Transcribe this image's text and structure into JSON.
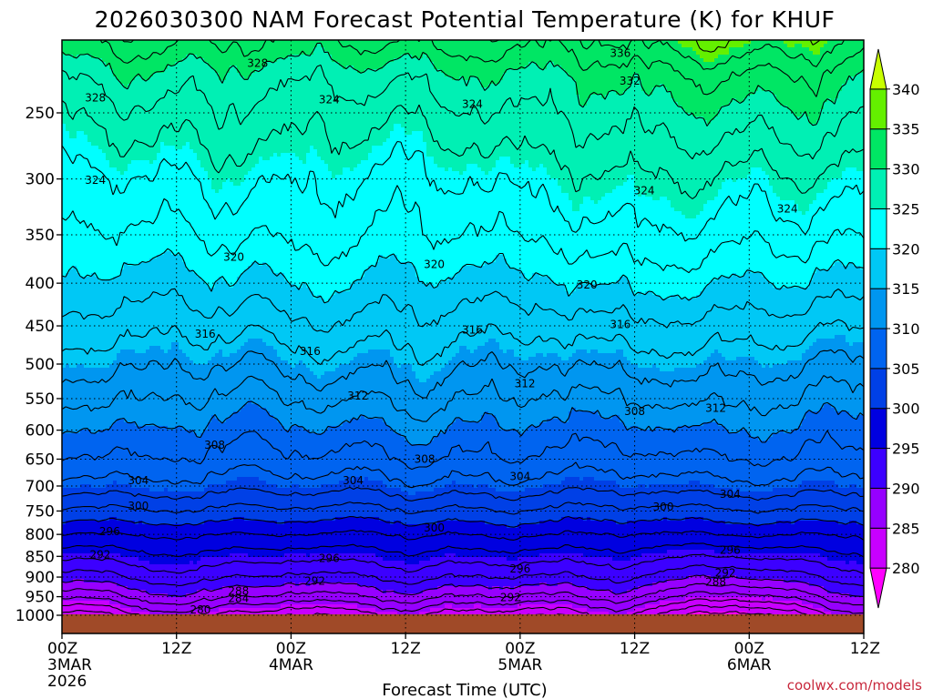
{
  "chart_data": {
    "type": "heatmap",
    "title": "2026030300 NAM Forecast Potential Temperature (K) for KHUF",
    "xlabel": "Forecast Time (UTC)",
    "ylabel": "",
    "credit": "coolwx.com/models",
    "x_ticks": [
      {
        "hours": 0,
        "label": "00Z",
        "sub": "3MAR",
        "sub2": "2026"
      },
      {
        "hours": 12,
        "label": "12Z",
        "sub": "",
        "sub2": ""
      },
      {
        "hours": 24,
        "label": "00Z",
        "sub": "4MAR",
        "sub2": ""
      },
      {
        "hours": 36,
        "label": "12Z",
        "sub": "",
        "sub2": ""
      },
      {
        "hours": 48,
        "label": "00Z",
        "sub": "5MAR",
        "sub2": ""
      },
      {
        "hours": 60,
        "label": "12Z",
        "sub": "",
        "sub2": ""
      },
      {
        "hours": 72,
        "label": "00Z",
        "sub": "6MAR",
        "sub2": ""
      },
      {
        "hours": 84,
        "label": "12Z",
        "sub": "",
        "sub2": ""
      }
    ],
    "xlim_hours": [
      0,
      84
    ],
    "y_ticks_hpa": [
      250,
      300,
      350,
      400,
      450,
      500,
      550,
      600,
      650,
      700,
      750,
      800,
      850,
      900,
      950,
      1000
    ],
    "ylim_hpa": [
      200,
      1025
    ],
    "colorbar": {
      "levels": [
        280,
        285,
        290,
        295,
        300,
        305,
        310,
        315,
        320,
        325,
        330,
        335,
        340
      ],
      "colors": [
        "#ff00ff",
        "#c800ff",
        "#9600ff",
        "#3c00ff",
        "#0000e0",
        "#0040e6",
        "#0064f0",
        "#0096f0",
        "#00c8f5",
        "#00ffff",
        "#00f0b4",
        "#00e664",
        "#64f000",
        "#c8ff00"
      ]
    },
    "contour_levels": [
      276,
      278,
      280,
      282,
      284,
      286,
      288,
      290,
      292,
      294,
      296,
      298,
      300,
      302,
      304,
      306,
      308,
      310,
      312,
      314,
      316,
      318,
      320,
      322,
      324,
      326,
      328,
      330,
      332,
      334,
      336,
      338
    ],
    "profile": [
      {
        "p": 200,
        "theta": 333
      },
      {
        "p": 225,
        "theta": 329
      },
      {
        "p": 250,
        "theta": 327
      },
      {
        "p": 300,
        "theta": 324
      },
      {
        "p": 350,
        "theta": 322
      },
      {
        "p": 400,
        "theta": 319.5
      },
      {
        "p": 450,
        "theta": 317
      },
      {
        "p": 500,
        "theta": 314.5
      },
      {
        "p": 550,
        "theta": 312
      },
      {
        "p": 600,
        "theta": 309.5
      },
      {
        "p": 650,
        "theta": 307.5
      },
      {
        "p": 700,
        "theta": 305
      },
      {
        "p": 750,
        "theta": 301.5
      },
      {
        "p": 800,
        "theta": 298
      },
      {
        "p": 850,
        "theta": 295
      },
      {
        "p": 900,
        "theta": 292
      },
      {
        "p": 950,
        "theta": 288
      },
      {
        "p": 1000,
        "theta": 283
      },
      {
        "p": 1025,
        "theta": 281
      }
    ],
    "contour_labels": [
      {
        "text": "336",
        "hours": 58.5,
        "p": 212
      },
      {
        "text": "332",
        "hours": 59.5,
        "p": 229
      },
      {
        "text": "328",
        "hours": 20.5,
        "p": 218
      },
      {
        "text": "328",
        "hours": 3.5,
        "p": 240
      },
      {
        "text": "324",
        "hours": 28,
        "p": 241
      },
      {
        "text": "324",
        "hours": 43,
        "p": 244
      },
      {
        "text": "324",
        "hours": 3.5,
        "p": 301
      },
      {
        "text": "324",
        "hours": 61,
        "p": 310
      },
      {
        "text": "324",
        "hours": 76,
        "p": 326
      },
      {
        "text": "320",
        "hours": 18,
        "p": 372
      },
      {
        "text": "320",
        "hours": 39,
        "p": 380
      },
      {
        "text": "320",
        "hours": 55,
        "p": 402
      },
      {
        "text": "316",
        "hours": 15,
        "p": 460
      },
      {
        "text": "316",
        "hours": 26,
        "p": 483
      },
      {
        "text": "316",
        "hours": 43,
        "p": 455
      },
      {
        "text": "316",
        "hours": 58.5,
        "p": 448
      },
      {
        "text": "312",
        "hours": 48.5,
        "p": 528
      },
      {
        "text": "312",
        "hours": 31,
        "p": 546
      },
      {
        "text": "312",
        "hours": 68.5,
        "p": 565
      },
      {
        "text": "308",
        "hours": 60,
        "p": 570
      },
      {
        "text": "308",
        "hours": 16,
        "p": 625
      },
      {
        "text": "308",
        "hours": 38,
        "p": 650
      },
      {
        "text": "304",
        "hours": 8,
        "p": 690
      },
      {
        "text": "304",
        "hours": 30.5,
        "p": 690
      },
      {
        "text": "304",
        "hours": 48,
        "p": 682
      },
      {
        "text": "304",
        "hours": 70,
        "p": 716
      },
      {
        "text": "300",
        "hours": 8,
        "p": 740
      },
      {
        "text": "300",
        "hours": 39,
        "p": 786
      },
      {
        "text": "300",
        "hours": 63,
        "p": 742
      },
      {
        "text": "296",
        "hours": 5,
        "p": 794
      },
      {
        "text": "296",
        "hours": 28,
        "p": 855
      },
      {
        "text": "296",
        "hours": 48,
        "p": 880
      },
      {
        "text": "296",
        "hours": 70,
        "p": 836
      },
      {
        "text": "292",
        "hours": 4,
        "p": 846
      },
      {
        "text": "292",
        "hours": 26.5,
        "p": 910
      },
      {
        "text": "292",
        "hours": 47,
        "p": 952
      },
      {
        "text": "292",
        "hours": 69.5,
        "p": 890
      },
      {
        "text": "288",
        "hours": 18.5,
        "p": 936
      },
      {
        "text": "288",
        "hours": 68.5,
        "p": 912
      },
      {
        "text": "284",
        "hours": 18.5,
        "p": 955
      },
      {
        "text": "280",
        "hours": 14.5,
        "p": 985
      }
    ],
    "ground_color": "#a04a28"
  }
}
